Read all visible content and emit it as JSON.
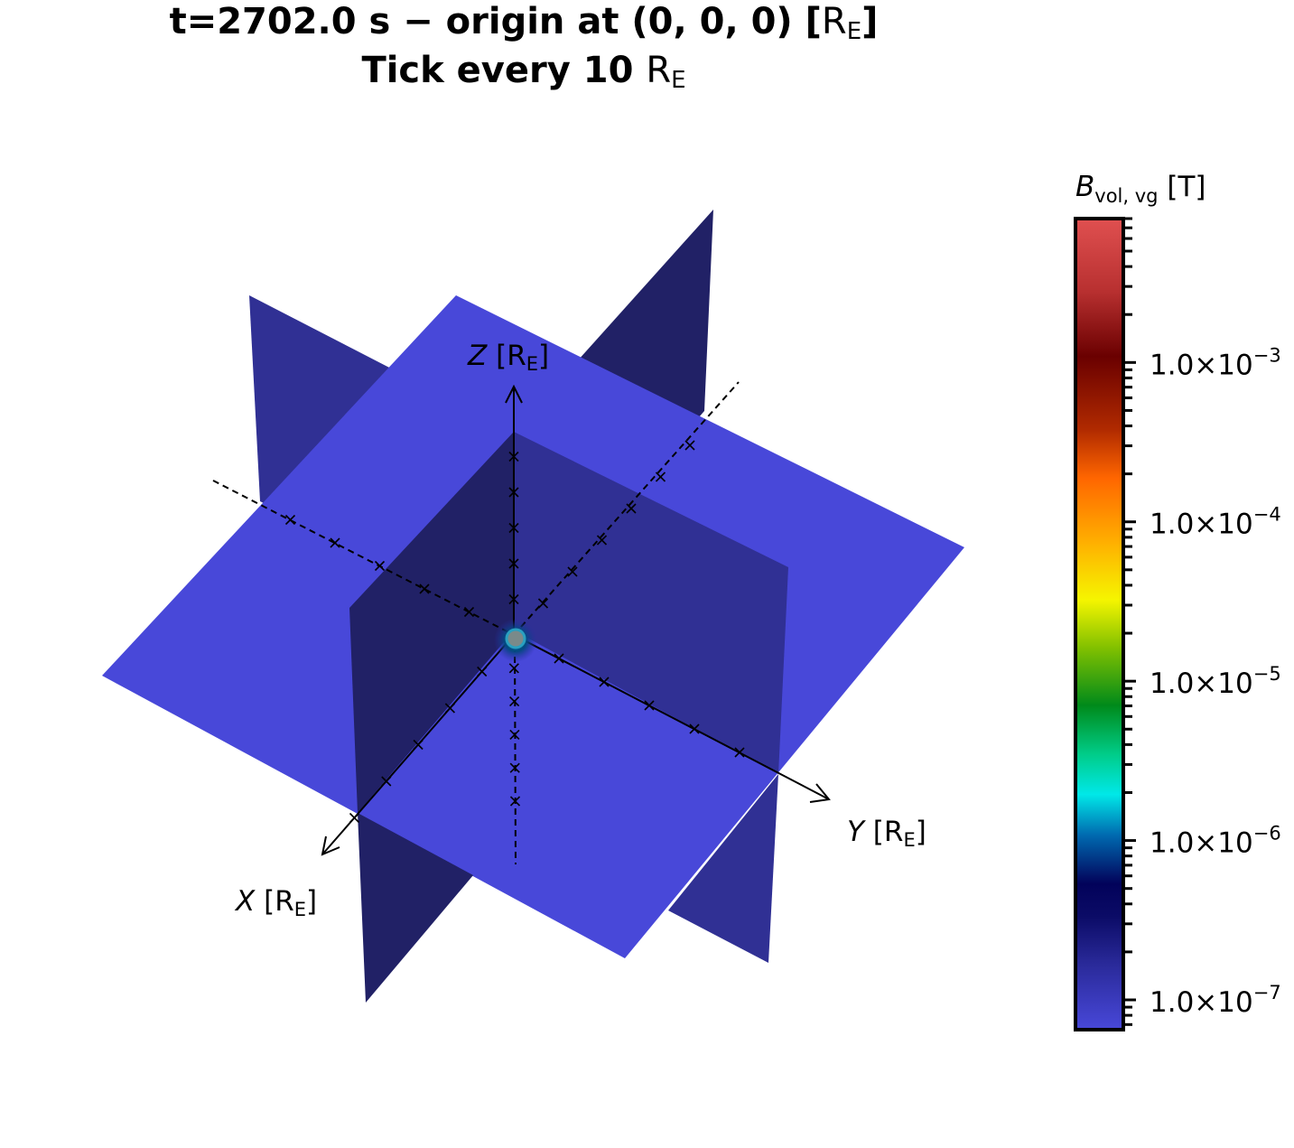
{
  "title": {
    "line1_prefix": "t=2702.0 s − origin at (0, 0, 0) [",
    "line1_unit": "R",
    "line1_unit_sub": "E",
    "line1_suffix": "]",
    "line2_prefix": "Tick every 10 ",
    "line2_unit": "R",
    "line2_unit_sub": "E"
  },
  "axes": {
    "x": {
      "var": "X",
      "unit": " [R",
      "unit_sub": "E",
      "unit_end": "]"
    },
    "y": {
      "var": "Y",
      "unit": " [R",
      "unit_sub": "E",
      "unit_end": "]"
    },
    "z": {
      "var": "Z",
      "unit": " [R",
      "unit_sub": "E",
      "unit_end": "]"
    }
  },
  "colorbar": {
    "label_var": "B",
    "label_sub": "vol, vg",
    "label_unit": " [T]",
    "scale": "log",
    "range": [
      6.5e-08,
      0.008
    ],
    "colormap_stops": [
      {
        "f": 0.0,
        "color": "#4848d9"
      },
      {
        "f": 0.08,
        "color": "#2a2a9a"
      },
      {
        "f": 0.14,
        "color": "#0b0b66"
      },
      {
        "f": 0.18,
        "color": "#02025a"
      },
      {
        "f": 0.24,
        "color": "#006ab0"
      },
      {
        "f": 0.29,
        "color": "#00e8e8"
      },
      {
        "f": 0.34,
        "color": "#00cc88"
      },
      {
        "f": 0.4,
        "color": "#008a1a"
      },
      {
        "f": 0.47,
        "color": "#80c000"
      },
      {
        "f": 0.53,
        "color": "#f5f500"
      },
      {
        "f": 0.6,
        "color": "#ffb000"
      },
      {
        "f": 0.68,
        "color": "#ff6600"
      },
      {
        "f": 0.74,
        "color": "#b02a00"
      },
      {
        "f": 0.83,
        "color": "#6a0000"
      },
      {
        "f": 0.91,
        "color": "#b83030"
      },
      {
        "f": 1.0,
        "color": "#e05050"
      }
    ],
    "tick_labels": [
      {
        "mantissa": "1.0×10",
        "exp": "−7",
        "value": 1e-07
      },
      {
        "mantissa": "1.0×10",
        "exp": "−6",
        "value": 1e-06
      },
      {
        "mantissa": "1.0×10",
        "exp": "−5",
        "value": 1e-05
      },
      {
        "mantissa": "1.0×10",
        "exp": "−4",
        "value": 0.0001
      },
      {
        "mantissa": "1.0×10",
        "exp": "−3",
        "value": 0.001
      }
    ]
  },
  "chart_data": {
    "type": "3d-slice-planes",
    "title": "t=2702.0 s − origin at (0, 0, 0) [RE] Tick every 10 RE",
    "xlabel": "X [RE]",
    "ylabel": "Y [RE]",
    "zlabel": "Z [RE]",
    "tick_spacing": 10,
    "plane_colors": {
      "xy_plane": "#4848d9",
      "xz_plane": "#303094",
      "yz_plane": "#212166"
    },
    "colorbar_variable": "B_vol,vg [T]"
  }
}
